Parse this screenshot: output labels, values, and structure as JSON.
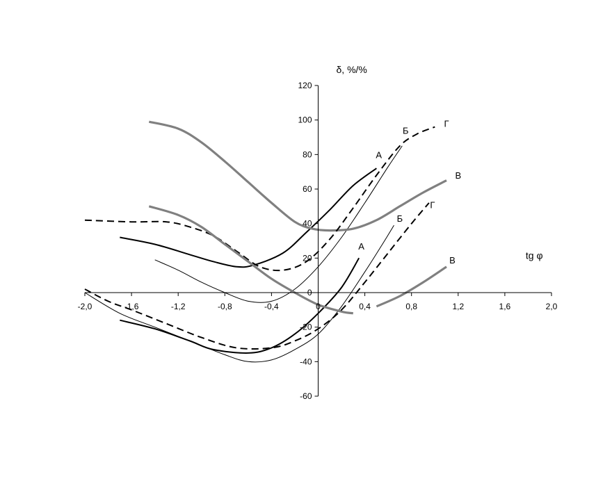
{
  "chart_data": {
    "type": "line",
    "title": "",
    "xlabel": "tg φ",
    "ylabel": "δ,  %/%",
    "xlim": [
      -2.0,
      2.0
    ],
    "ylim": [
      -60,
      120
    ],
    "grid": false,
    "legend": "none",
    "x_ticks": [
      -2.0,
      -1.6,
      -1.2,
      -0.8,
      -0.4,
      0,
      0.4,
      0.8,
      1.2,
      1.6,
      2.0
    ],
    "x_tick_labels": [
      "-2,0",
      "-1,6",
      "-1,2",
      "-0,8",
      "-0,4",
      "0",
      "0,4",
      "0,8",
      "1,2",
      "1,6",
      "2,0"
    ],
    "y_ticks": [
      -60,
      -40,
      -20,
      0,
      20,
      40,
      60,
      80,
      100,
      120
    ],
    "y_tick_labels": [
      "-60",
      "-40",
      "-20",
      "0",
      "20",
      "40",
      "60",
      "80",
      "100",
      "120"
    ],
    "series": [
      {
        "label": "А",
        "style": "thick-solid",
        "color": "#000000",
        "x": [
          -1.7,
          -1.4,
          -1.1,
          -0.9,
          -0.7,
          -0.55,
          -0.3,
          -0.1,
          0.1,
          0.3,
          0.5
        ],
        "y": [
          32,
          28,
          22,
          18,
          15,
          16,
          23,
          35,
          48,
          62,
          72
        ]
      },
      {
        "label": "Б",
        "style": "thin-solid",
        "color": "#000000",
        "x": [
          -1.4,
          -1.2,
          -1.0,
          -0.8,
          -0.6,
          -0.4,
          -0.2,
          0.0,
          0.2,
          0.4,
          0.6,
          0.72
        ],
        "y": [
          19,
          13,
          6,
          0,
          -5,
          -5,
          2,
          15,
          32,
          52,
          73,
          85
        ]
      },
      {
        "label": "В",
        "style": "thick-gray",
        "color": "#808080",
        "x": [
          -1.45,
          -1.2,
          -1.0,
          -0.8,
          -0.6,
          -0.4,
          -0.2,
          -0.05,
          0.1,
          0.3,
          0.5,
          0.7,
          0.9,
          1.1
        ],
        "y": [
          99,
          95,
          87,
          76,
          64,
          52,
          41,
          37,
          36,
          37,
          42,
          50,
          58,
          65
        ]
      },
      {
        "label": "Г",
        "style": "thick-dashed",
        "color": "#000000",
        "x": [
          -2.0,
          -1.6,
          -1.3,
          -1.1,
          -0.9,
          -0.7,
          -0.5,
          -0.3,
          -0.1,
          0.1,
          0.3,
          0.5,
          0.7,
          0.85,
          1.0
        ],
        "y": [
          42,
          41,
          41,
          38,
          33,
          24,
          15,
          13,
          18,
          31,
          49,
          68,
          85,
          92,
          96
        ]
      },
      {
        "label": "А",
        "style": "thick-solid",
        "color": "#000000",
        "x": [
          -1.7,
          -1.4,
          -1.1,
          -0.9,
          -0.6,
          -0.4,
          -0.2,
          0.0,
          0.2,
          0.35
        ],
        "y": [
          -16,
          -21,
          -28,
          -33,
          -35,
          -32,
          -24,
          -12,
          3,
          20
        ]
      },
      {
        "label": "Б",
        "style": "thin-solid",
        "color": "#000000",
        "x": [
          -2.0,
          -1.7,
          -1.4,
          -1.1,
          -0.8,
          -0.6,
          -0.4,
          -0.2,
          0.0,
          0.2,
          0.4,
          0.55,
          0.65
        ],
        "y": [
          0,
          -12,
          -20,
          -28,
          -36,
          -40,
          -39,
          -33,
          -24,
          -8,
          12,
          28,
          39
        ]
      },
      {
        "label": "В",
        "style": "thick-gray",
        "color": "#808080",
        "x": [
          -1.45,
          -1.2,
          -1.0,
          -0.8,
          -0.6,
          -0.4,
          -0.2,
          0.0,
          0.2,
          0.3
        ],
        "y": [
          50,
          45,
          38,
          28,
          18,
          8,
          0,
          -7,
          -11,
          -12
        ]
      },
      {
        "label": "В",
        "style": "thick-gray",
        "color": "#808080",
        "x": [
          0.5,
          0.7,
          0.9,
          1.1
        ],
        "y": [
          -8,
          -2,
          6,
          15
        ]
      },
      {
        "label": "Г",
        "style": "thick-dashed",
        "color": "#000000",
        "x": [
          -2.0,
          -1.8,
          -1.6,
          -1.3,
          -1.0,
          -0.7,
          -0.4,
          -0.2,
          0.0,
          0.2,
          0.4,
          0.6,
          0.8,
          0.95
        ],
        "y": [
          2,
          -5,
          -10,
          -18,
          -26,
          -32,
          -32,
          -28,
          -21,
          -10,
          6,
          23,
          40,
          52
        ]
      }
    ],
    "curve_labels": [
      {
        "text": "А",
        "x": 0.52,
        "y": 78
      },
      {
        "text": "Б",
        "x": 0.75,
        "y": 92
      },
      {
        "text": "Г",
        "x": 1.1,
        "y": 96
      },
      {
        "text": "В",
        "x": 1.2,
        "y": 66
      },
      {
        "text": "Г",
        "x": 0.98,
        "y": 49
      },
      {
        "text": "Б",
        "x": 0.7,
        "y": 41
      },
      {
        "text": "А",
        "x": 0.37,
        "y": 25
      },
      {
        "text": "В",
        "x": 1.15,
        "y": 17
      }
    ]
  }
}
